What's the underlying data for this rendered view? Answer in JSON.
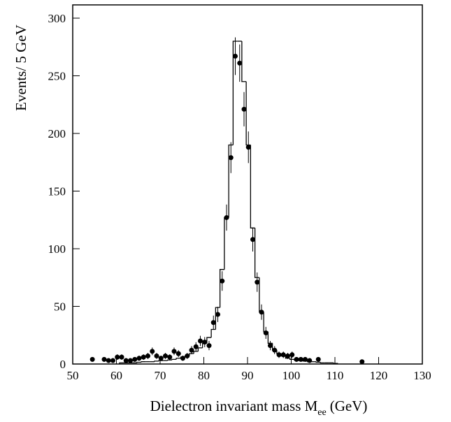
{
  "chart_data": {
    "type": "histogram",
    "xlabel": {
      "text": "Dielectron invariant mass M",
      "subscript": "ee",
      "unit": "(GeV)"
    },
    "ylabel": "Events/ 5 GeV",
    "xlim": [
      50,
      130
    ],
    "xticks": [
      50,
      60,
      70,
      80,
      90,
      100,
      110,
      120,
      130
    ],
    "ylim": [
      0,
      311.5
    ],
    "yticks": [
      0,
      50,
      100,
      150,
      200,
      250,
      300
    ],
    "color": "#000000",
    "bins": [
      60.7,
      61.7,
      62.7,
      63.7,
      64.7,
      65.7,
      66.7,
      67.7,
      68.7,
      69.7,
      70.7,
      71.7,
      72.7,
      73.7,
      74.7,
      75.7,
      76.7,
      77.7,
      78.7,
      79.7,
      80.7,
      81.7,
      82.7,
      83.7,
      84.7,
      85.7,
      86.7,
      87.7,
      88.7,
      89.7,
      90.7,
      91.7,
      92.7,
      93.7,
      94.7,
      95.7,
      96.7,
      97.7,
      98.7,
      99.7,
      100.7,
      101.7,
      102.7,
      103.7,
      104.7,
      105.7,
      106.7,
      107.7,
      108.7,
      109.7,
      110.7
    ],
    "counts": [
      1,
      1,
      1,
      1,
      1.5,
      2,
      2,
      2,
      2.5,
      3,
      3,
      3.5,
      4,
      5,
      6,
      7,
      9,
      11,
      14,
      18,
      23,
      30,
      49,
      82,
      127,
      190,
      280,
      280,
      245,
      190,
      118,
      75,
      45,
      28,
      18,
      12,
      9,
      7,
      5,
      4,
      3.5,
      3,
      2.5,
      2,
      2,
      1.5,
      1,
      1,
      1,
      0.5
    ],
    "points": {
      "x": [
        54.5,
        57.2,
        58.2,
        59.2,
        60.2,
        61.2,
        62.2,
        63.2,
        64.2,
        65.2,
        66.2,
        67.2,
        68.2,
        69.2,
        70.2,
        71.2,
        72.2,
        73.2,
        74.2,
        75.2,
        76.2,
        77.2,
        78.2,
        79.2,
        80.2,
        81.2,
        82.2,
        83.2,
        84.2,
        85.2,
        86.2,
        87.2,
        88.2,
        89.2,
        90.2,
        91.2,
        92.2,
        93.2,
        94.2,
        95.2,
        96.2,
        97.2,
        98.2,
        99.2,
        100.2,
        101.2,
        102.2,
        103.2,
        104.2,
        106.2,
        116.2
      ],
      "values": [
        4,
        4,
        3,
        3,
        6,
        6,
        3,
        3,
        4,
        5,
        6,
        7,
        11,
        7,
        5,
        7,
        6,
        11,
        9,
        5,
        7,
        12,
        15,
        20,
        19,
        16,
        36,
        43,
        72,
        127,
        179,
        267,
        261,
        221,
        188,
        108,
        71,
        45,
        27,
        16,
        12,
        8,
        8,
        7,
        8,
        4,
        4,
        4,
        3,
        4,
        2
      ],
      "errors": [
        2,
        2,
        1.7,
        1.7,
        2.4,
        2.4,
        1.7,
        1.7,
        2,
        2.2,
        2.4,
        2.6,
        3.3,
        2.6,
        2.2,
        2.6,
        2.4,
        3.3,
        3,
        2.2,
        2.6,
        3.5,
        3.9,
        4.5,
        4.4,
        4,
        6,
        6.6,
        8.5,
        11.3,
        13.4,
        16.3,
        16.2,
        14.9,
        13.7,
        10.4,
        8.4,
        6.7,
        5.2,
        4,
        3.5,
        2.8,
        2.8,
        2.6,
        2.8,
        2,
        2,
        2,
        1.7,
        2,
        1.4
      ]
    }
  }
}
